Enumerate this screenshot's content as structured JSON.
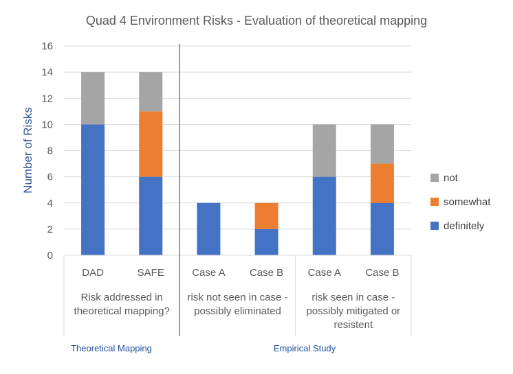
{
  "chart_data": {
    "type": "bar",
    "stacked": true,
    "title": "Quad 4  Environment Risks - Evaluation of theoretical mapping",
    "ylabel": "Number of Risks",
    "ylim": [
      0,
      16
    ],
    "yticks": [
      0,
      2,
      4,
      6,
      8,
      10,
      12,
      14,
      16
    ],
    "grid": true,
    "legend_position": "right",
    "categories": [
      "DAD",
      "SAFE",
      "Case A",
      "Case B",
      "Case A",
      "Case B"
    ],
    "groups": [
      {
        "label_lines": [
          "Risk addressed in",
          "theoretical mapping?"
        ],
        "categories": [
          "DAD",
          "SAFE"
        ]
      },
      {
        "label_lines": [
          "risk not seen in case -",
          "possibly eliminated"
        ],
        "categories": [
          "Case A",
          "Case B"
        ]
      },
      {
        "label_lines": [
          "risk seen in case -",
          "possibly mitigated or",
          "resistent"
        ],
        "categories": [
          "Case A",
          "Case B"
        ]
      }
    ],
    "series": [
      {
        "name": "definitely",
        "color": "#4472c4",
        "values": [
          10,
          6,
          4,
          2,
          6,
          4
        ]
      },
      {
        "name": "somewhat",
        "color": "#ed7d31",
        "values": [
          0,
          5,
          0,
          2,
          0,
          3
        ]
      },
      {
        "name": "not",
        "color": "#a5a5a5",
        "values": [
          4,
          3,
          0,
          0,
          4,
          3
        ]
      }
    ],
    "sections": [
      "Theoretical Mapping",
      "Empirical Study"
    ]
  }
}
